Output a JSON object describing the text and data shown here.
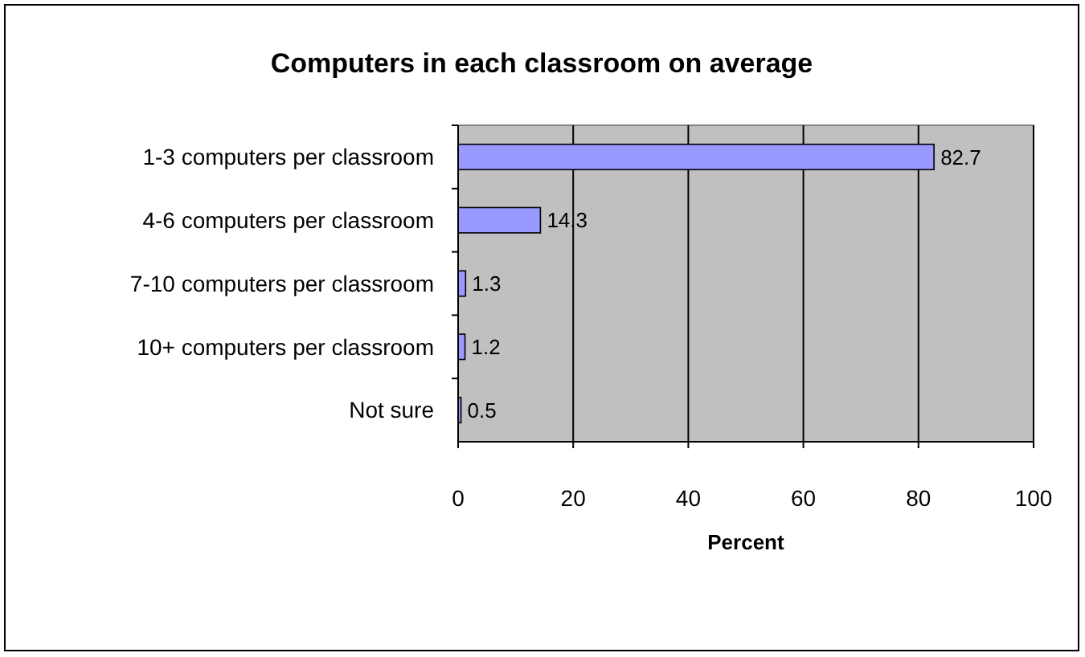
{
  "chart_data": {
    "type": "bar",
    "orientation": "horizontal",
    "title": "Computers in each classroom on average",
    "xlabel": "Percent",
    "categories": [
      "1-3 computers per classroom",
      "4-6 computers per classroom",
      "7-10 computers per classroom",
      "10+ computers per classroom",
      "Not sure"
    ],
    "values": [
      82.7,
      14.3,
      1.3,
      1.2,
      0.5
    ],
    "color": "#9999ff",
    "xlim": [
      0,
      100
    ],
    "xticks": [
      0,
      20,
      40,
      60,
      80,
      100
    ],
    "grid": "x",
    "data_labels": true
  }
}
